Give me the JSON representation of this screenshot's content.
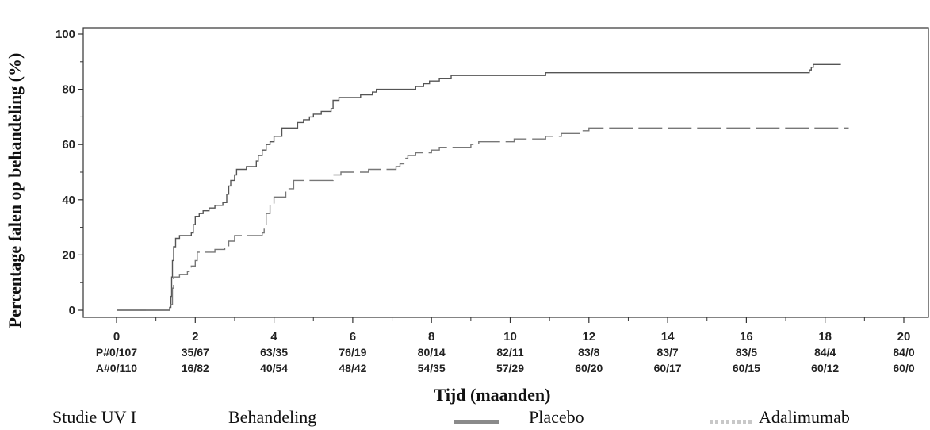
{
  "chart_data": {
    "type": "line",
    "ylabel": "Percentage falen op behandeling  (%)",
    "xlabel": "Tijd (maanden)",
    "xlim": [
      0,
      20
    ],
    "ylim": [
      0,
      100
    ],
    "x_ticks": [
      "0",
      "2",
      "4",
      "6",
      "8",
      "10",
      "12",
      "14",
      "16",
      "18",
      "20"
    ],
    "y_ticks": [
      "0",
      "20",
      "40",
      "60",
      "80",
      "100"
    ],
    "series": [
      {
        "name": "Placebo",
        "style": "solid",
        "color": "#555555",
        "points": [
          [
            0,
            0
          ],
          [
            1.3,
            0
          ],
          [
            1.35,
            1
          ],
          [
            1.38,
            5
          ],
          [
            1.4,
            12
          ],
          [
            1.42,
            18
          ],
          [
            1.45,
            23
          ],
          [
            1.5,
            26
          ],
          [
            1.6,
            27
          ],
          [
            1.9,
            28
          ],
          [
            1.95,
            31
          ],
          [
            2.0,
            34
          ],
          [
            2.1,
            35
          ],
          [
            2.2,
            36
          ],
          [
            2.35,
            37
          ],
          [
            2.5,
            38
          ],
          [
            2.7,
            39
          ],
          [
            2.8,
            42
          ],
          [
            2.85,
            45
          ],
          [
            2.9,
            47
          ],
          [
            3.0,
            49
          ],
          [
            3.05,
            51
          ],
          [
            3.3,
            52
          ],
          [
            3.55,
            54
          ],
          [
            3.6,
            56
          ],
          [
            3.7,
            58
          ],
          [
            3.8,
            60
          ],
          [
            3.9,
            61
          ],
          [
            4.0,
            63
          ],
          [
            4.2,
            66
          ],
          [
            4.6,
            68
          ],
          [
            4.75,
            69
          ],
          [
            4.9,
            70
          ],
          [
            5.0,
            71
          ],
          [
            5.2,
            72
          ],
          [
            5.45,
            73
          ],
          [
            5.5,
            76
          ],
          [
            5.65,
            77
          ],
          [
            6.2,
            78
          ],
          [
            6.5,
            79
          ],
          [
            6.6,
            80
          ],
          [
            7.6,
            81
          ],
          [
            7.8,
            82
          ],
          [
            7.95,
            83
          ],
          [
            8.2,
            84
          ],
          [
            8.5,
            85
          ],
          [
            10.9,
            86
          ],
          [
            17.6,
            87
          ],
          [
            17.65,
            88
          ],
          [
            17.7,
            89
          ],
          [
            18.4,
            89
          ]
        ]
      },
      {
        "name": "Adalimumab",
        "style": "dashed",
        "color": "#777777",
        "points": [
          [
            0,
            0
          ],
          [
            1.3,
            0
          ],
          [
            1.38,
            2
          ],
          [
            1.42,
            8
          ],
          [
            1.45,
            12
          ],
          [
            1.6,
            13
          ],
          [
            1.8,
            14
          ],
          [
            1.9,
            16
          ],
          [
            2.0,
            18
          ],
          [
            2.05,
            21
          ],
          [
            2.5,
            22
          ],
          [
            2.75,
            23
          ],
          [
            2.85,
            25
          ],
          [
            3.0,
            27
          ],
          [
            3.7,
            28
          ],
          [
            3.75,
            31
          ],
          [
            3.8,
            35
          ],
          [
            3.9,
            38
          ],
          [
            4.0,
            41
          ],
          [
            4.3,
            44
          ],
          [
            4.5,
            47
          ],
          [
            5.5,
            49
          ],
          [
            5.7,
            50
          ],
          [
            6.4,
            51
          ],
          [
            7.1,
            52
          ],
          [
            7.2,
            53
          ],
          [
            7.3,
            54
          ],
          [
            7.35,
            55
          ],
          [
            7.4,
            56
          ],
          [
            7.6,
            57
          ],
          [
            8.0,
            58
          ],
          [
            8.2,
            59
          ],
          [
            9.0,
            60
          ],
          [
            9.2,
            61
          ],
          [
            10.1,
            62
          ],
          [
            10.9,
            63
          ],
          [
            11.3,
            64
          ],
          [
            11.8,
            65
          ],
          [
            12.0,
            66
          ],
          [
            18.6,
            66
          ]
        ]
      }
    ],
    "risk_table": {
      "rows": [
        {
          "label": "P#0/107",
          "values": [
            "35/67",
            "63/35",
            "76/19",
            "80/14",
            "82/11",
            "83/8",
            "83/7",
            "83/5",
            "84/4",
            "84/0"
          ]
        },
        {
          "label": "A#0/110",
          "values": [
            "16/82",
            "40/54",
            "48/42",
            "54/35",
            "57/29",
            "60/20",
            "60/17",
            "60/15",
            "60/12",
            "60/0"
          ]
        }
      ]
    }
  },
  "legend": {
    "study": "Studie UV I",
    "heading": "Behandeling",
    "items": [
      {
        "label": "Placebo",
        "style": "solid",
        "color": "#8a8a8a"
      },
      {
        "label": "Adalimumab",
        "style": "dashed",
        "color": "#c8c8c8"
      }
    ]
  }
}
